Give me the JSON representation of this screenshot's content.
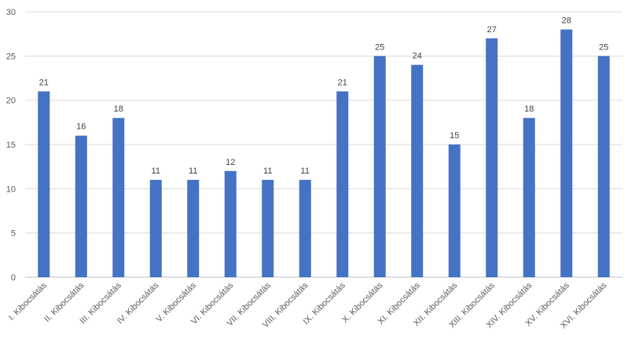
{
  "chart_data": {
    "type": "bar",
    "title": "",
    "xlabel": "",
    "ylabel": "",
    "categories": [
      "I. Kibocsátás",
      "II. Kibocsátás",
      "III. Kibocsátás",
      "IV. Kibocsátás",
      "V. Kibocsátás",
      "VI. Kibocsátás",
      "VII. Kibocsátás",
      "VIII. Kibocsátás",
      "IX. Kibocsátás",
      "X. Kibocsátás",
      "XI. Kibocsátás",
      "XII. Kibocsátás",
      "XIII. Kibocsátás",
      "XIV. Kibocsátás",
      "XV. Kibocsátás",
      "XVI. Kibocsátás"
    ],
    "values": [
      21,
      16,
      18,
      11,
      11,
      12,
      11,
      11,
      21,
      25,
      24,
      15,
      27,
      18,
      28,
      25
    ],
    "ylim": [
      0,
      30
    ],
    "yticks": [
      0,
      5,
      10,
      15,
      20,
      25,
      30
    ],
    "grid": true,
    "legend": "none",
    "bar_color": "#4472c4"
  }
}
